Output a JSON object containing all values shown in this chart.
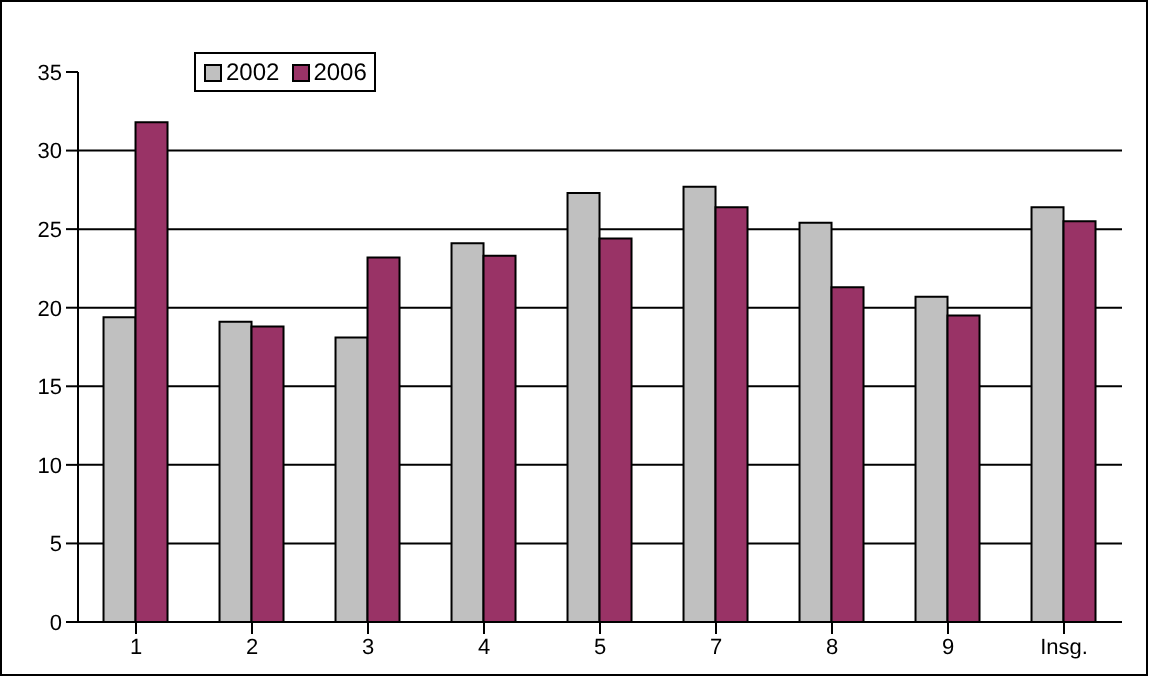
{
  "chart_data": {
    "type": "bar",
    "categories": [
      "1",
      "2",
      "3",
      "4",
      "5",
      "7",
      "8",
      "9",
      "Insg."
    ],
    "series": [
      {
        "name": "2002",
        "color": "#c0c0c0",
        "values": [
          19.4,
          19.1,
          18.1,
          24.1,
          27.3,
          27.7,
          25.4,
          20.7,
          26.4
        ]
      },
      {
        "name": "2006",
        "color": "#993366",
        "values": [
          31.8,
          18.8,
          23.2,
          23.3,
          24.4,
          26.4,
          21.3,
          19.5,
          25.5
        ]
      }
    ],
    "ylim": [
      0,
      35
    ],
    "yticks": [
      0,
      5,
      10,
      15,
      20,
      25,
      30,
      35
    ],
    "grid": "y",
    "legend": "top left"
  }
}
